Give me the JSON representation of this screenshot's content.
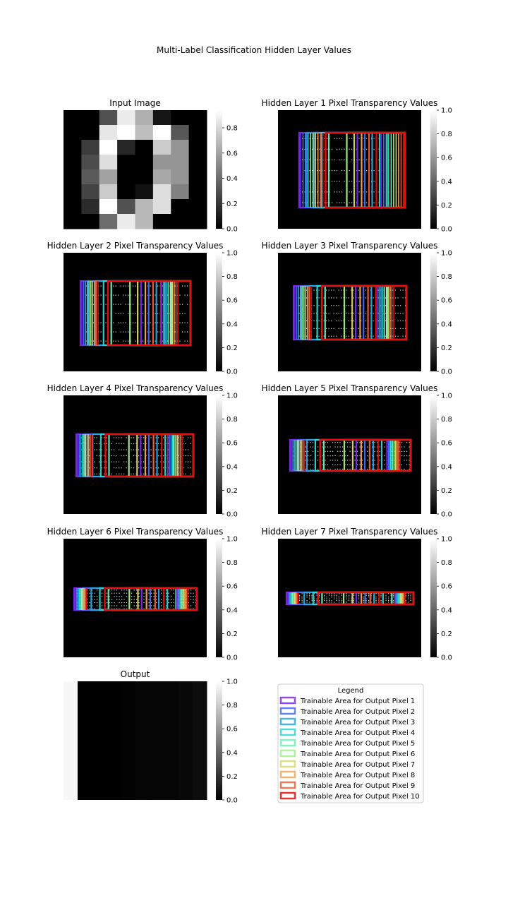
{
  "figure": {
    "title": "Multi-Label Classification Hidden Layer Values"
  },
  "colormap": {
    "name": "gray",
    "cbar_ticks": [
      "0.0",
      "0.2",
      "0.4",
      "0.6",
      "0.8",
      "1.0"
    ]
  },
  "chart_data": [
    {
      "type": "heatmap",
      "title": "Input Image",
      "colormap": "gray",
      "vmax": 0.94,
      "cbar_ticks": [
        "0.0",
        "0.2",
        "0.4",
        "0.6",
        "0.8"
      ],
      "values": [
        [
          0.0,
          0.0,
          0.3,
          0.87,
          0.65,
          0.08,
          0.0,
          0.0
        ],
        [
          0.0,
          0.0,
          0.85,
          0.98,
          0.7,
          0.95,
          0.32,
          0.0
        ],
        [
          0.0,
          0.22,
          0.97,
          0.14,
          0.0,
          0.75,
          0.55,
          0.0
        ],
        [
          0.0,
          0.28,
          0.82,
          0.0,
          0.0,
          0.55,
          0.55,
          0.0
        ],
        [
          0.0,
          0.33,
          0.6,
          0.0,
          0.0,
          0.62,
          0.55,
          0.0
        ],
        [
          0.0,
          0.25,
          0.75,
          0.0,
          0.06,
          0.82,
          0.48,
          0.0
        ],
        [
          0.0,
          0.16,
          0.95,
          0.3,
          0.68,
          0.82,
          0.0,
          0.0
        ],
        [
          0.0,
          0.0,
          0.4,
          0.87,
          0.68,
          0.0,
          0.0,
          0.0
        ]
      ]
    },
    {
      "type": "heatmap",
      "title": "Hidden Layer 1 Pixel Transparency Values",
      "colormap": "gray",
      "ylim": [
        0,
        1
      ],
      "trainable_areas": 10
    },
    {
      "type": "heatmap",
      "title": "Hidden Layer 2 Pixel Transparency Values",
      "colormap": "gray",
      "ylim": [
        0,
        1
      ],
      "trainable_areas": 10
    },
    {
      "type": "heatmap",
      "title": "Hidden Layer 3 Pixel Transparency Values",
      "colormap": "gray",
      "ylim": [
        0,
        1
      ],
      "trainable_areas": 10
    },
    {
      "type": "heatmap",
      "title": "Hidden Layer 4 Pixel Transparency Values",
      "colormap": "gray",
      "ylim": [
        0,
        1
      ],
      "trainable_areas": 10
    },
    {
      "type": "heatmap",
      "title": "Hidden Layer 5 Pixel Transparency Values",
      "colormap": "gray",
      "ylim": [
        0,
        1
      ],
      "trainable_areas": 10
    },
    {
      "type": "heatmap",
      "title": "Hidden Layer 6 Pixel Transparency Values",
      "colormap": "gray",
      "ylim": [
        0,
        1
      ],
      "trainable_areas": 10
    },
    {
      "type": "heatmap",
      "title": "Hidden Layer 7 Pixel Transparency Values",
      "colormap": "gray",
      "ylim": [
        0,
        1
      ],
      "trainable_areas": 10
    },
    {
      "type": "heatmap",
      "title": "Output",
      "colormap": "gray",
      "ylim": [
        0,
        1
      ],
      "values": [
        [
          0.97,
          0.0,
          0.0,
          0.0,
          0.01,
          0.02,
          0.02,
          0.02,
          0.03,
          0.05
        ]
      ]
    }
  ],
  "legend": {
    "title": "Legend",
    "entries": [
      {
        "label": "Trainable Area for Output Pixel 1",
        "color": "#7a2cf0"
      },
      {
        "label": "Trainable Area for Output Pixel 2",
        "color": "#4a6df0"
      },
      {
        "label": "Trainable Area for Output Pixel 3",
        "color": "#2aa6e0"
      },
      {
        "label": "Trainable Area for Output Pixel 4",
        "color": "#2fd6d0"
      },
      {
        "label": "Trainable Area for Output Pixel 5",
        "color": "#6ef0b8"
      },
      {
        "label": "Trainable Area for Output Pixel 6",
        "color": "#a2f08e"
      },
      {
        "label": "Trainable Area for Output Pixel 7",
        "color": "#d8d872"
      },
      {
        "label": "Trainable Area for Output Pixel 8",
        "color": "#f5a55a"
      },
      {
        "label": "Trainable Area for Output Pixel 9",
        "color": "#f0603a"
      },
      {
        "label": "Trainable Area for Output Pixel 10",
        "color": "#e01010"
      }
    ]
  }
}
